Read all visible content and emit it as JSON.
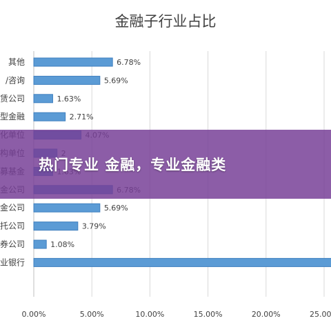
{
  "banner": {
    "text": "热门专业 金融，专业金融类"
  },
  "colors": {
    "bar": "#5b9bd5",
    "bar_edge": "#3f7fbf",
    "grid": "#d9d9d9",
    "text": "#404040",
    "banner": "#763e96"
  },
  "chart_data": {
    "type": "bar",
    "orientation": "horizontal",
    "title": "金融子行业占比",
    "xlim": [
      0,
      25
    ],
    "xticks": [
      "0.00%",
      "5.00%",
      "10.00%",
      "15.00%",
      "20.00%",
      "25.00%"
    ],
    "categories": [
      "其他",
      "/咨询",
      "赁公司",
      "型金融",
      "化单位",
      "构单位",
      "募基金",
      "金公司",
      "金公司",
      "托公司",
      "券公司",
      "业银行"
    ],
    "values": [
      6.78,
      5.69,
      1.63,
      2.71,
      4.07,
      2.0,
      1.63,
      6.78,
      5.69,
      3.79,
      1.08,
      26.0
    ],
    "data_labels": [
      "6.78%",
      "5.69%",
      "1.63%",
      "2.71%",
      "4.07%",
      "2",
      "1.63%",
      "6.78%",
      "5.69%",
      "3.79%",
      "1.08%",
      ""
    ],
    "grid": true
  }
}
